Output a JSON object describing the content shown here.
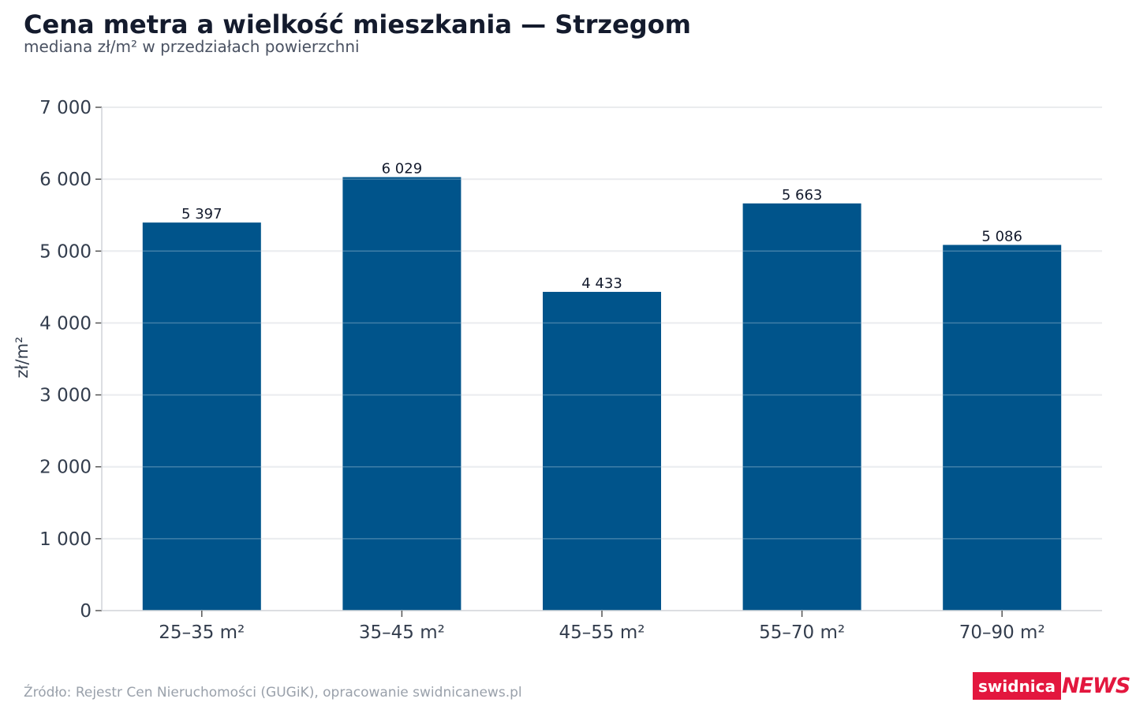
{
  "chart_data": {
    "type": "bar",
    "title": "Cena metra a wielkość mieszkania — Strzegom",
    "subtitle": "mediana zł/m² w przedziałach powierzchni",
    "categories": [
      "25–35 m²",
      "35–45 m²",
      "45–55 m²",
      "55–70 m²",
      "70–90 m²"
    ],
    "values": [
      5397,
      6029,
      4433,
      5663,
      5086
    ],
    "value_labels": [
      "5 397",
      "6 029",
      "4 433",
      "5 663",
      "5 086"
    ],
    "xlabel": "",
    "ylabel": "zł/m²",
    "ylim": [
      0,
      7000
    ],
    "yticks": [
      0,
      1000,
      2000,
      3000,
      4000,
      5000,
      6000,
      7000
    ],
    "ytick_labels": [
      "0",
      "1 000",
      "2 000",
      "3 000",
      "4 000",
      "5 000",
      "6 000",
      "7 000"
    ],
    "grid": true,
    "bar_color": "#00548b",
    "grid_color": "#e5e7eb"
  },
  "footer": {
    "source": "Źródło: Rejestr Cen Nieruchomości (GUGiK), opracowanie swidnicanews.pl"
  },
  "logo": {
    "part1": "swidnica",
    "part2": "NEWS",
    "color": "#e3173e"
  }
}
